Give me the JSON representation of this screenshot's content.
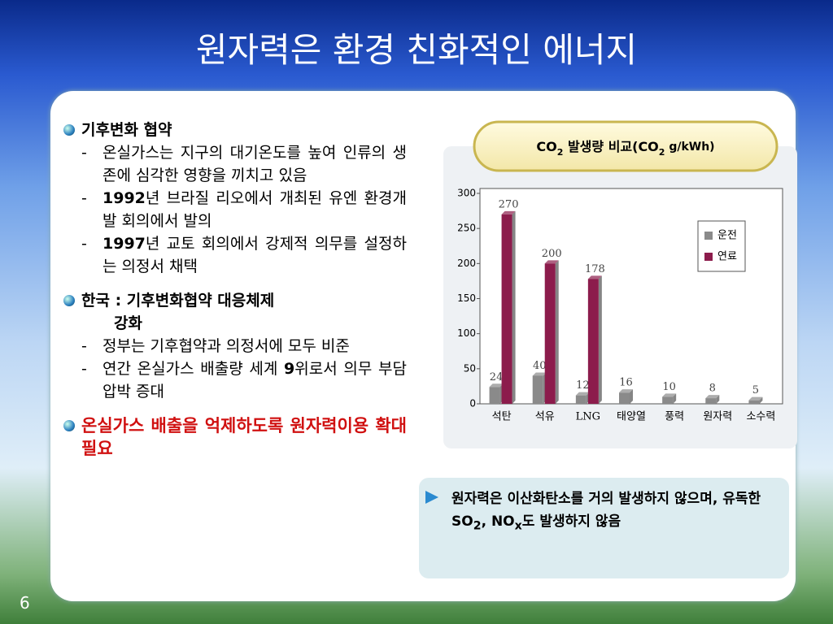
{
  "slide": {
    "title": "원자력은 환경 친화적인 에너지",
    "page_number": "6"
  },
  "left": {
    "bullet1": {
      "text": "기후변화 협약",
      "sub1": "온실가스는 지구의 대기온도를 높여 인류의 생존에 심각한 영향을 끼치고 있음",
      "sub2": [
        "1992",
        "년 브라질 리오에서 개최된 유엔 환경개발 회의에서 발의"
      ],
      "sub3": [
        "1997",
        "년 교토 회의에서 강제적 의무를 설정하는 의정서 채택"
      ]
    },
    "bullet2": {
      "text": [
        "한국 : 기후변화협약 대응체제",
        "강화"
      ],
      "sub1": "정부는 기후협약과 의정서에 모두 비준",
      "sub2": [
        "연간 온실가스 배출량 세계 ",
        "9",
        "위로서 의무 부담 압박 증대"
      ]
    },
    "bullet3": {
      "text": "온실가스 배출을 억제하도록 원자력이용 확대 필요"
    },
    "dash": "-"
  },
  "callout": {
    "text": [
      "원자력은 이산화탄소를 거의 발생하지 않으며, 유독한 SO",
      "2",
      ", NO",
      "x",
      "도 발생하지 않음"
    ]
  },
  "chart_data": {
    "type": "bar",
    "title": [
      "CO",
      "2",
      " 발생량 비교(CO",
      "2",
      " g/kWh)"
    ],
    "categories": [
      "석탄",
      "석유",
      "LNG",
      "태양열",
      "풍력",
      "원자력",
      "소수력"
    ],
    "series": [
      {
        "name": "운전",
        "color": "#8a8a8a",
        "values": [
          24,
          40,
          12,
          16,
          10,
          8,
          5
        ]
      },
      {
        "name": "연료",
        "color": "#8c1c4c",
        "values": [
          270,
          200,
          178,
          null,
          null,
          null,
          null
        ]
      }
    ],
    "ylim": [
      0,
      300
    ],
    "yticks": [
      0,
      50,
      100,
      150,
      200,
      250,
      300
    ],
    "legend": "right"
  }
}
